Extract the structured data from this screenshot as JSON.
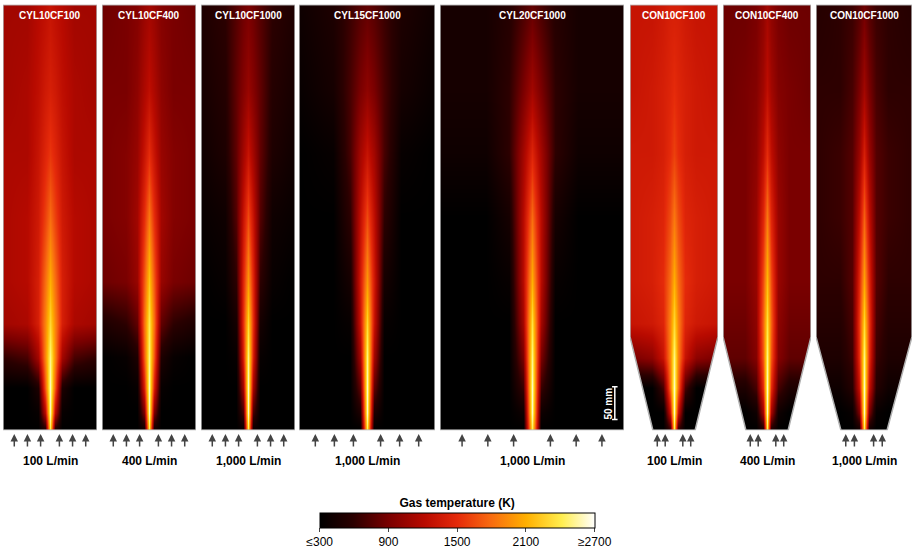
{
  "chart_data": {
    "type": "heatmap",
    "tick_labels": false,
    "colorbar": {
      "title": "Gas temperature (K)",
      "range": [
        300,
        2700
      ],
      "ticks": [
        {
          "value": 300,
          "label": "≤300"
        },
        900,
        1500,
        2100,
        {
          "value": 2700,
          "label": "≥2700"
        }
      ]
    },
    "scale_bar": "50 mm",
    "x": [
      -1,
      -0.5,
      -0.25,
      -0.1,
      0,
      0.1,
      0.25,
      0.5,
      1
    ],
    "y": [
      0,
      0.04,
      0.1,
      0.17,
      0.25,
      0.35,
      0.5,
      0.65,
      0.8,
      1
    ],
    "panels": [
      {
        "title": "CYL10CF100",
        "flow": "100 L/min",
        "shape": "cylinder",
        "cells": [
          [
            300,
            300,
            300,
            500,
            2400,
            500,
            300,
            300,
            300
          ],
          [
            300,
            300,
            350,
            1200,
            2600,
            1200,
            350,
            300,
            300
          ],
          [
            300,
            300,
            500,
            1700,
            2600,
            1700,
            500,
            300,
            300
          ],
          [
            600,
            700,
            1100,
            1900,
            2500,
            1900,
            1100,
            700,
            600
          ],
          [
            1100,
            1150,
            1400,
            1900,
            2300,
            1900,
            1400,
            1150,
            1100
          ],
          [
            1150,
            1200,
            1400,
            1800,
            2100,
            1800,
            1400,
            1200,
            1150
          ],
          [
            1150,
            1200,
            1350,
            1600,
            1800,
            1600,
            1350,
            1200,
            1150
          ],
          [
            1150,
            1150,
            1300,
            1450,
            1550,
            1450,
            1300,
            1150,
            1150
          ],
          [
            1100,
            1150,
            1250,
            1350,
            1400,
            1350,
            1250,
            1150,
            1100
          ],
          [
            1100,
            1100,
            1200,
            1250,
            1300,
            1250,
            1200,
            1100,
            1100
          ]
        ]
      },
      {
        "title": "CYL10CF400",
        "flow": "400 L/min",
        "shape": "cylinder",
        "cells": [
          [
            300,
            300,
            300,
            400,
            2400,
            400,
            300,
            300,
            300
          ],
          [
            300,
            300,
            300,
            900,
            2600,
            900,
            300,
            300,
            300
          ],
          [
            300,
            300,
            350,
            1400,
            2600,
            1400,
            350,
            300,
            300
          ],
          [
            300,
            350,
            500,
            1700,
            2500,
            1700,
            500,
            350,
            300
          ],
          [
            500,
            600,
            800,
            1800,
            2400,
            1800,
            800,
            600,
            500
          ],
          [
            850,
            900,
            1050,
            1700,
            2200,
            1700,
            1050,
            900,
            850
          ],
          [
            900,
            950,
            1100,
            1500,
            1850,
            1500,
            1100,
            950,
            900
          ],
          [
            900,
            950,
            1050,
            1300,
            1500,
            1300,
            1050,
            950,
            900
          ],
          [
            900,
            900,
            1000,
            1150,
            1250,
            1150,
            1000,
            900,
            900
          ],
          [
            850,
            900,
            950,
            1050,
            1100,
            1050,
            950,
            900,
            850
          ]
        ]
      },
      {
        "title": "CYL10CF1000",
        "flow": "1,000 L/min",
        "shape": "cylinder",
        "cells": [
          [
            300,
            300,
            300,
            350,
            2400,
            350,
            300,
            300,
            300
          ],
          [
            300,
            300,
            300,
            700,
            2600,
            700,
            300,
            300,
            300
          ],
          [
            300,
            300,
            300,
            1100,
            2600,
            1100,
            300,
            300,
            300
          ],
          [
            300,
            300,
            350,
            1400,
            2500,
            1400,
            350,
            300,
            300
          ],
          [
            300,
            300,
            450,
            1500,
            2300,
            1500,
            450,
            300,
            300
          ],
          [
            300,
            350,
            600,
            1450,
            2000,
            1450,
            600,
            350,
            300
          ],
          [
            350,
            400,
            750,
            1300,
            1650,
            1300,
            750,
            400,
            350
          ],
          [
            400,
            500,
            800,
            1100,
            1300,
            1100,
            800,
            500,
            400
          ],
          [
            450,
            550,
            800,
            950,
            1050,
            950,
            800,
            550,
            450
          ],
          [
            500,
            600,
            750,
            850,
            900,
            850,
            750,
            600,
            500
          ]
        ]
      },
      {
        "title": "CYL15CF1000",
        "flow": "1,000 L/min",
        "shape": "cylinder",
        "cells": [
          [
            300,
            300,
            300,
            300,
            2400,
            300,
            300,
            300,
            300
          ],
          [
            300,
            300,
            300,
            500,
            2600,
            500,
            300,
            300,
            300
          ],
          [
            300,
            300,
            300,
            800,
            2600,
            800,
            300,
            300,
            300
          ],
          [
            300,
            300,
            300,
            1100,
            2500,
            1100,
            300,
            300,
            300
          ],
          [
            300,
            300,
            350,
            1300,
            2300,
            1300,
            350,
            300,
            300
          ],
          [
            300,
            300,
            450,
            1350,
            2000,
            1350,
            450,
            300,
            300
          ],
          [
            300,
            300,
            600,
            1250,
            1650,
            1250,
            600,
            300,
            300
          ],
          [
            300,
            350,
            700,
            1100,
            1300,
            1100,
            700,
            350,
            300
          ],
          [
            350,
            450,
            700,
            900,
            1000,
            900,
            700,
            450,
            350
          ],
          [
            400,
            500,
            650,
            750,
            800,
            750,
            650,
            500,
            400
          ]
        ]
      },
      {
        "title": "CYL20CF1000",
        "flow": "1,000 L/min",
        "shape": "cylinder",
        "cells": [
          [
            300,
            300,
            300,
            300,
            2400,
            300,
            300,
            300,
            300
          ],
          [
            300,
            300,
            300,
            400,
            2600,
            400,
            300,
            300,
            300
          ],
          [
            300,
            300,
            300,
            650,
            2600,
            650,
            300,
            300,
            300
          ],
          [
            300,
            300,
            300,
            900,
            2500,
            900,
            300,
            300,
            300
          ],
          [
            300,
            300,
            300,
            1100,
            2350,
            1100,
            300,
            300,
            300
          ],
          [
            300,
            300,
            350,
            1200,
            2100,
            1200,
            350,
            300,
            300
          ],
          [
            300,
            300,
            450,
            1200,
            1800,
            1200,
            450,
            300,
            300
          ],
          [
            400,
            400,
            600,
            1100,
            1450,
            1100,
            600,
            400,
            400
          ],
          [
            450,
            450,
            600,
            900,
            1100,
            900,
            600,
            450,
            450
          ],
          [
            450,
            450,
            550,
            700,
            800,
            700,
            550,
            450,
            450
          ]
        ]
      },
      {
        "title": "CON10CF100",
        "flow": "100 L/min",
        "shape": "cone",
        "cells": [
          [
            300,
            300,
            300,
            600,
            2400,
            600,
            300,
            300,
            300
          ],
          [
            300,
            300,
            300,
            1300,
            2600,
            1300,
            300,
            300,
            300
          ],
          [
            300,
            300,
            700,
            1800,
            2600,
            1800,
            700,
            300,
            300
          ],
          [
            900,
            1000,
            1300,
            1900,
            2500,
            1900,
            1300,
            1000,
            900
          ],
          [
            1300,
            1350,
            1450,
            1900,
            2300,
            1900,
            1450,
            1350,
            1300
          ],
          [
            1350,
            1400,
            1500,
            1800,
            2100,
            1800,
            1500,
            1400,
            1350
          ],
          [
            1350,
            1400,
            1450,
            1650,
            1850,
            1650,
            1450,
            1400,
            1350
          ],
          [
            1350,
            1350,
            1400,
            1500,
            1600,
            1500,
            1400,
            1350,
            1350
          ],
          [
            1300,
            1350,
            1400,
            1450,
            1500,
            1450,
            1400,
            1350,
            1300
          ],
          [
            1300,
            1300,
            1350,
            1400,
            1400,
            1400,
            1350,
            1300,
            1300
          ]
        ]
      },
      {
        "title": "CON10CF400",
        "flow": "400 L/min",
        "shape": "cone",
        "cells": [
          [
            300,
            300,
            300,
            500,
            2400,
            500,
            300,
            300,
            300
          ],
          [
            300,
            300,
            400,
            1100,
            2600,
            1100,
            400,
            300,
            300
          ],
          [
            500,
            500,
            700,
            1500,
            2600,
            1500,
            700,
            500,
            500
          ],
          [
            800,
            800,
            950,
            1700,
            2500,
            1700,
            950,
            800,
            800
          ],
          [
            850,
            850,
            1000,
            1750,
            2350,
            1750,
            1000,
            850,
            850
          ],
          [
            900,
            900,
            1050,
            1650,
            2150,
            1650,
            1050,
            900,
            900
          ],
          [
            900,
            900,
            1050,
            1450,
            1850,
            1450,
            1050,
            900,
            900
          ],
          [
            900,
            900,
            1000,
            1250,
            1500,
            1250,
            1000,
            900,
            900
          ],
          [
            850,
            900,
            950,
            1100,
            1250,
            1100,
            950,
            900,
            850
          ],
          [
            850,
            850,
            900,
            1000,
            1100,
            1000,
            900,
            850,
            850
          ]
        ]
      },
      {
        "title": "CON10CF1000",
        "flow": "1,000 L/min",
        "shape": "cone",
        "cells": [
          [
            300,
            300,
            300,
            400,
            2400,
            400,
            300,
            300,
            300
          ],
          [
            300,
            300,
            350,
            900,
            2600,
            900,
            350,
            300,
            300
          ],
          [
            400,
            400,
            550,
            1300,
            2600,
            1300,
            550,
            400,
            400
          ],
          [
            500,
            500,
            650,
            1500,
            2500,
            1500,
            650,
            500,
            500
          ],
          [
            550,
            550,
            700,
            1550,
            2300,
            1550,
            700,
            550,
            550
          ],
          [
            600,
            600,
            750,
            1450,
            2050,
            1450,
            750,
            600,
            600
          ],
          [
            600,
            650,
            750,
            1250,
            1750,
            1250,
            750,
            650,
            600
          ],
          [
            600,
            650,
            750,
            1050,
            1400,
            1050,
            750,
            650,
            600
          ],
          [
            600,
            600,
            700,
            900,
            1100,
            900,
            700,
            600,
            600
          ],
          [
            550,
            600,
            650,
            750,
            850,
            750,
            650,
            600,
            550
          ]
        ]
      }
    ]
  }
}
